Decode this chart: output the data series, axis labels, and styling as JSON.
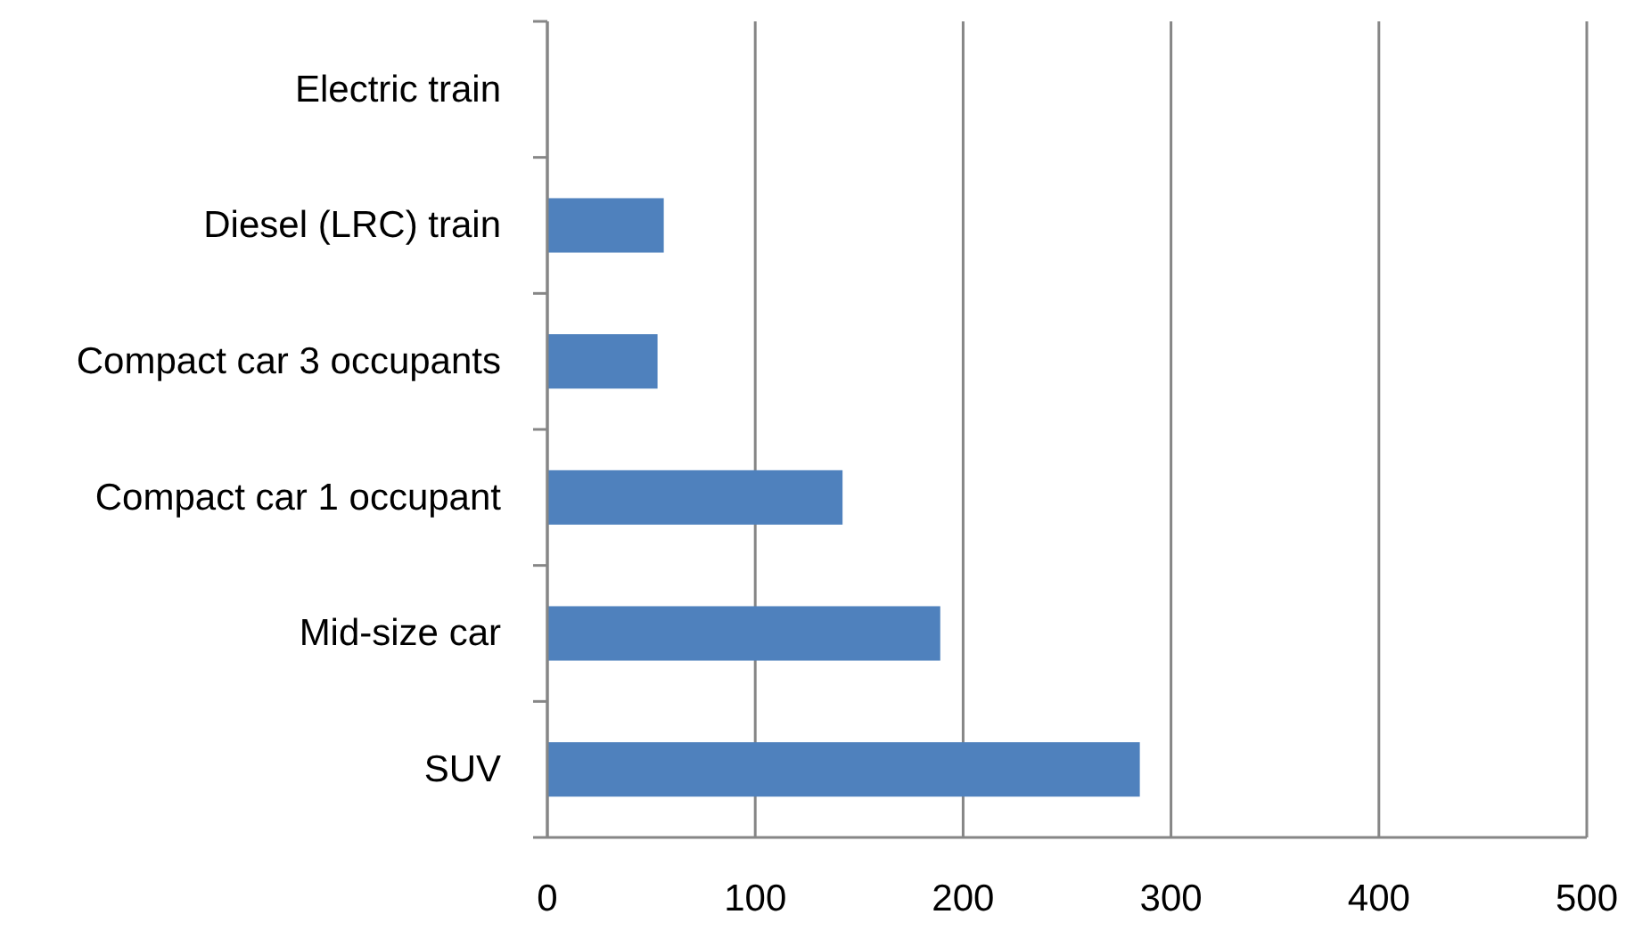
{
  "chart_data": {
    "type": "bar",
    "orientation": "horizontal",
    "categories": [
      "Electric train",
      "Diesel  (LRC) train",
      "Compact car 3 occupants",
      "Compact car 1 occupant",
      "Mid-size car",
      "SUV"
    ],
    "values": [
      0,
      56,
      53,
      142,
      189,
      285
    ],
    "color": "#4f81bd",
    "xlim": [
      0,
      500
    ],
    "xticks": [
      0,
      100,
      200,
      300,
      400,
      500
    ],
    "grid": "x"
  }
}
